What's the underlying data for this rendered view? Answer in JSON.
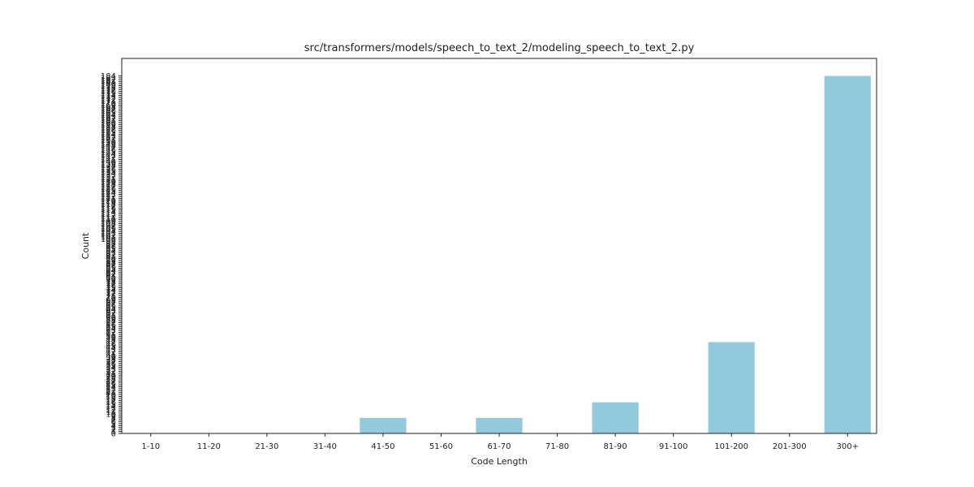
{
  "chart_data": {
    "type": "bar",
    "title": "src/transformers/models/speech_to_text_2/modeling_speech_to_text_2.py",
    "xlabel": "Code Length",
    "ylabel": "Count",
    "categories": [
      "1-10",
      "11-20",
      "21-30",
      "31-40",
      "41-50",
      "51-60",
      "61-70",
      "71-80",
      "81-90",
      "91-100",
      "101-200",
      "201-300",
      "300+"
    ],
    "values": [
      0,
      0,
      0,
      0,
      8,
      0,
      8,
      0,
      16,
      0,
      47,
      0,
      184
    ],
    "ylim": [
      0,
      193
    ],
    "yticks": [
      0,
      1,
      2,
      3,
      4,
      5,
      6,
      7,
      8,
      9,
      10,
      11,
      12,
      13,
      14,
      15,
      16,
      17,
      18,
      19,
      20,
      21,
      22,
      23,
      24,
      25,
      26,
      27,
      28,
      29,
      30,
      31,
      32,
      33,
      34,
      35,
      36,
      37,
      38,
      39,
      40,
      41,
      42,
      43,
      44,
      45,
      46,
      47,
      48,
      49,
      50,
      51,
      52,
      53,
      54,
      55,
      56,
      57,
      58,
      59,
      60,
      61,
      62,
      63,
      64,
      65,
      66,
      67,
      68,
      69,
      70,
      71,
      72,
      73,
      74,
      75,
      76,
      77,
      78,
      79,
      80,
      81,
      82,
      83,
      84,
      85,
      86,
      87,
      88,
      89,
      90,
      91,
      92,
      93,
      94,
      95,
      96,
      97,
      98,
      99,
      100,
      101,
      102,
      103,
      104,
      105,
      106,
      107,
      108,
      109,
      110,
      111,
      112,
      113,
      114,
      115,
      116,
      117,
      118,
      119,
      120,
      121,
      122,
      123,
      124,
      125,
      126,
      127,
      128,
      129,
      130,
      131,
      132,
      133,
      134,
      135,
      136,
      137,
      138,
      139,
      140,
      141,
      142,
      143,
      144,
      145,
      146,
      147,
      148,
      149,
      150,
      151,
      152,
      153,
      154,
      155,
      156,
      157,
      158,
      159,
      160,
      161,
      162,
      163,
      164,
      165,
      166,
      167,
      168,
      169,
      170,
      171,
      172,
      173,
      174,
      175,
      176,
      177,
      178,
      179,
      180,
      181,
      182,
      183,
      184
    ],
    "bar_color": "#92c9dd",
    "grid": false,
    "legend": "none"
  }
}
